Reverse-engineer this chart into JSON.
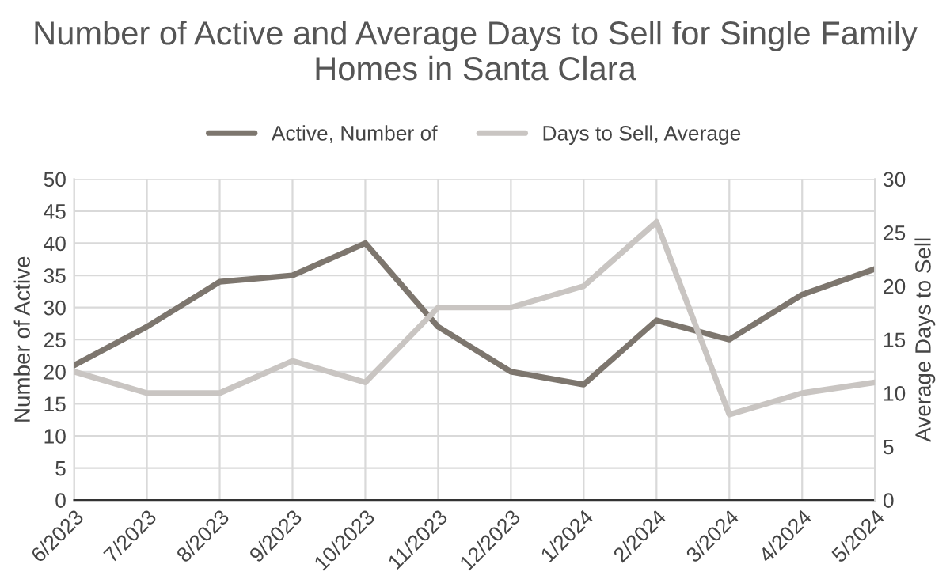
{
  "chart_data": {
    "type": "line",
    "title": "Number of Active and Average Days to Sell for Single Family Homes in Santa Clara",
    "ylabel": "Number of Active",
    "y2label": "Average Days to Sell",
    "categories": [
      "6/2023",
      "7/2023",
      "8/2023",
      "9/2023",
      "10/2023",
      "11/2023",
      "12/2023",
      "1/2024",
      "2/2024",
      "3/2024",
      "4/2024",
      "5/2024"
    ],
    "series": [
      {
        "name": "Active, Number of",
        "color": "#7d766e",
        "values": [
          21,
          27,
          34,
          35,
          40,
          27,
          20,
          18,
          28,
          25,
          32,
          36
        ]
      },
      {
        "name": "Days to Sell, Average",
        "color": "#c9c5c2",
        "axis": "y2",
        "values": [
          12,
          10,
          10,
          13,
          11,
          18,
          18,
          20,
          26,
          8,
          10,
          11
        ]
      }
    ],
    "ylim": [
      0,
      50
    ],
    "yticks": [
      0,
      5,
      10,
      15,
      20,
      25,
      30,
      35,
      40,
      45,
      50
    ],
    "y2lim": [
      0,
      30
    ],
    "y2ticks": [
      0,
      5,
      10,
      15,
      20,
      25,
      30
    ],
    "grid": true,
    "legend": "top",
    "marker": "none",
    "line_style": "solid"
  }
}
